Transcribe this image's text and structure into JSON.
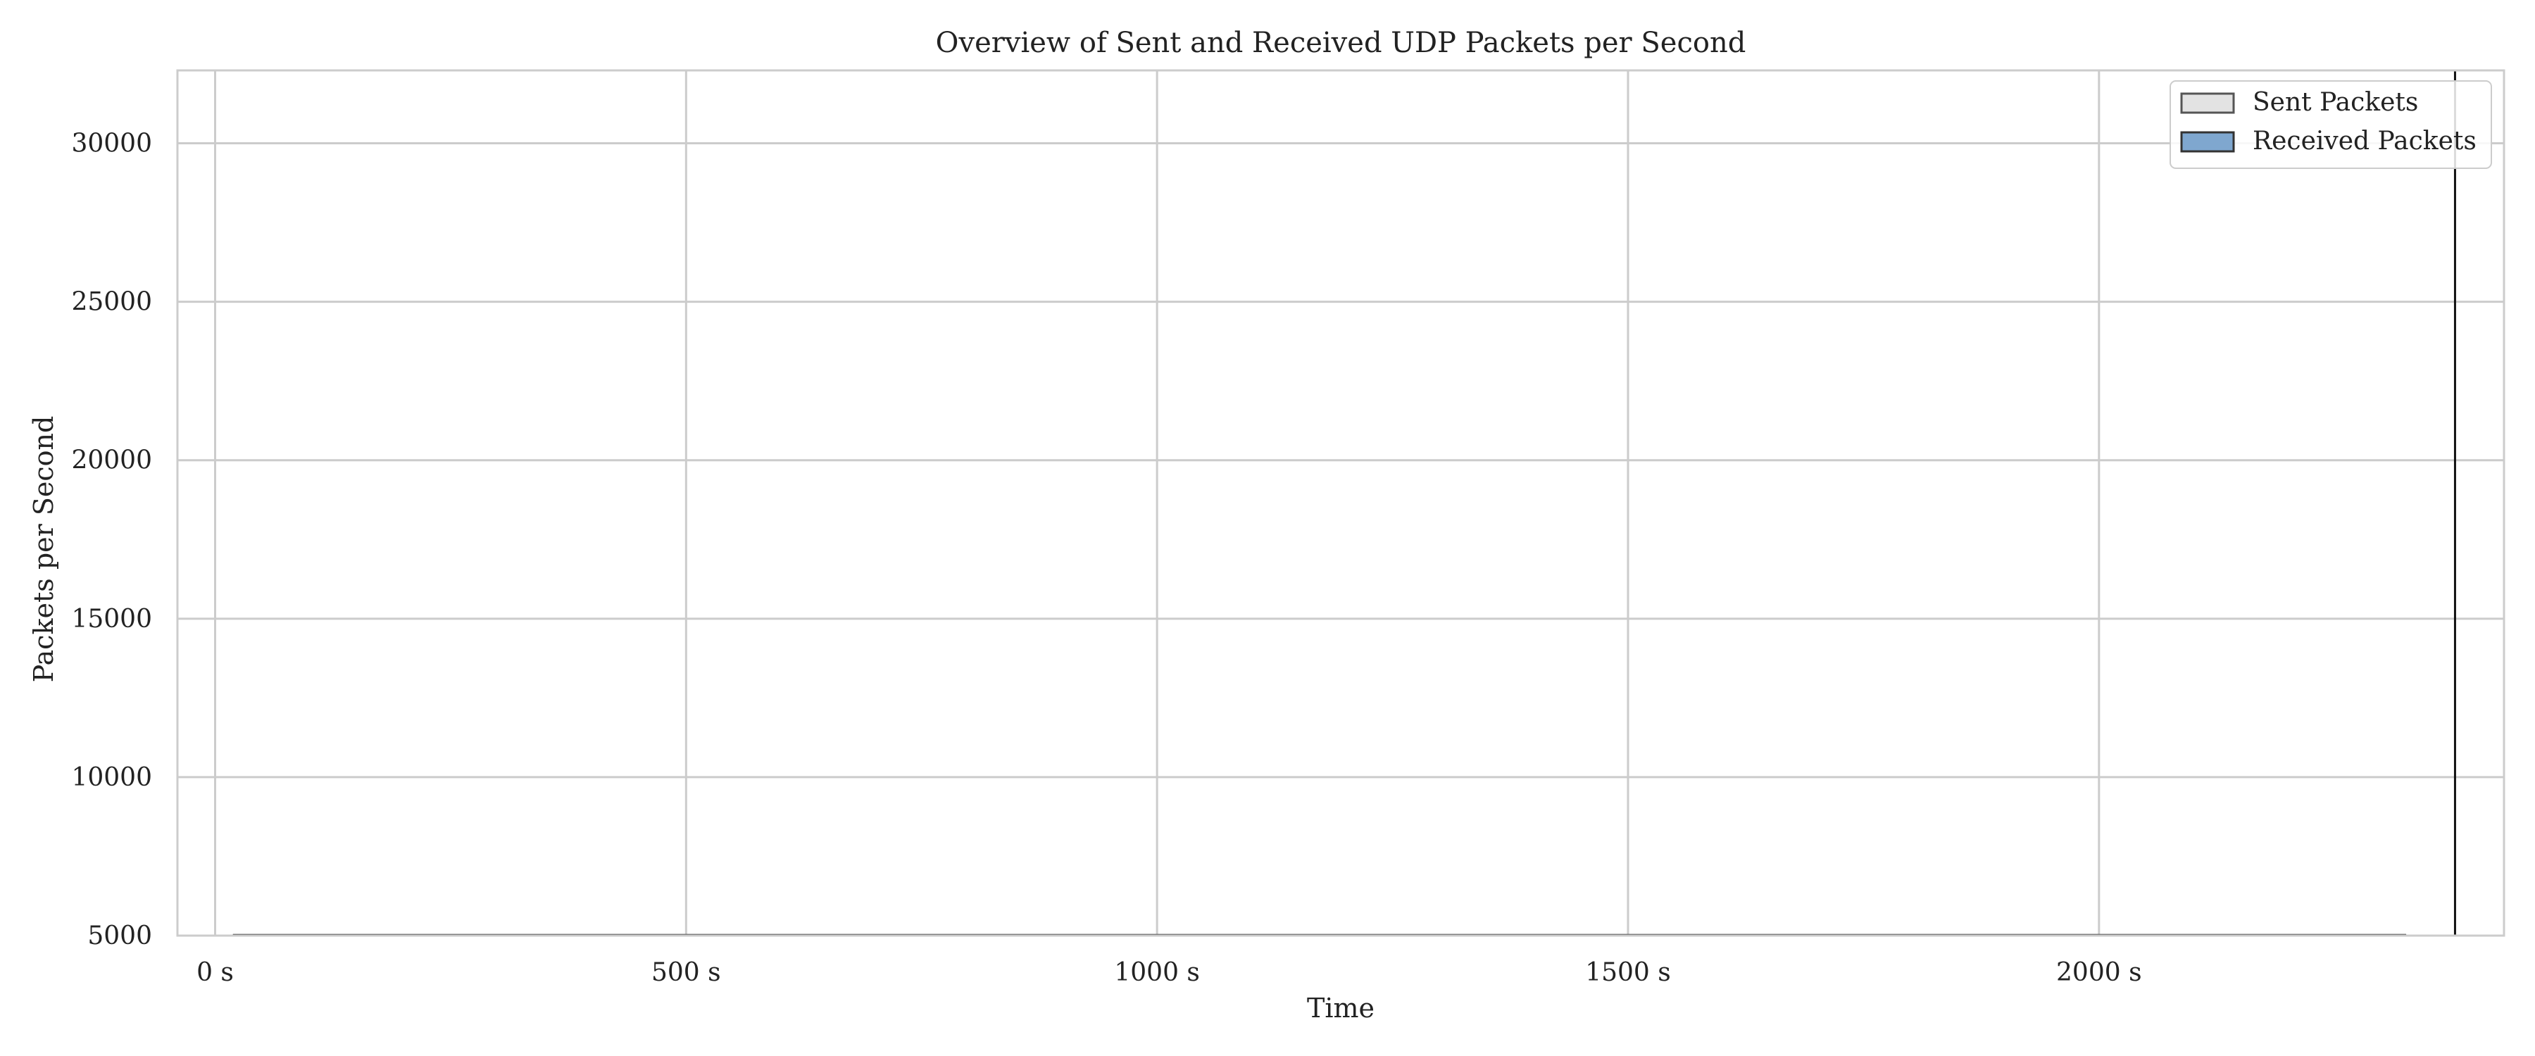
{
  "chart_data": {
    "type": "area",
    "title": "Overview of Sent and Received UDP Packets per Second",
    "xlabel": "Time",
    "ylabel": "Packets per Second",
    "x_unit": "s",
    "xlim": [
      -40,
      2430
    ],
    "ylim": [
      5000,
      32300
    ],
    "x_ticks": [
      0,
      500,
      1000,
      1500,
      2000
    ],
    "x_tick_labels": [
      "0 s",
      "500 s",
      "1000 s",
      "1500 s",
      "2000 s"
    ],
    "y_ticks": [
      5000,
      10000,
      15000,
      20000,
      25000,
      30000
    ],
    "y_tick_labels": [
      "5000",
      "10000",
      "15000",
      "20000",
      "25000",
      "30000"
    ],
    "grid": true,
    "legend_position": "top-right",
    "series": [
      {
        "name": "Sent Packets",
        "color": "#e3e3e3",
        "edge_color": "#555555",
        "x": [
          20,
          2325
        ],
        "y": [
          5020,
          5020
        ]
      },
      {
        "name": "Received Packets",
        "color": "#7fa7cf",
        "edge_color": "#333333",
        "x": [
          20,
          2325
        ],
        "y": [
          5010,
          5010
        ]
      }
    ],
    "annotations": [
      {
        "type": "vertical-line",
        "x": 2378,
        "y_from": 5000,
        "y_to": 32300,
        "color": "#111111"
      }
    ]
  }
}
